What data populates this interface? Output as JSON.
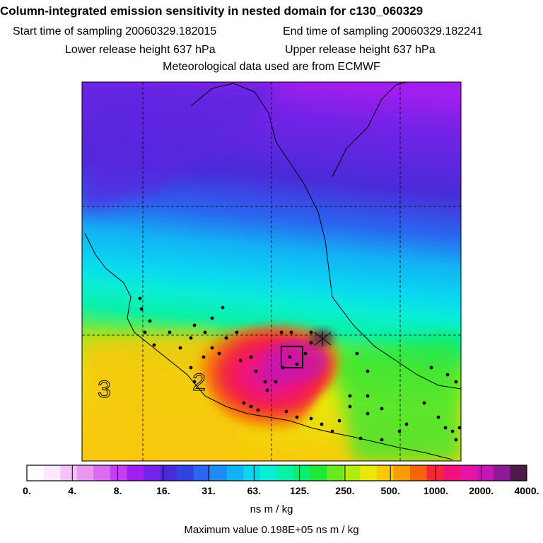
{
  "header": {
    "title": "Column-integrated emission sensitivity in nested domain for c130_060329",
    "start_time": "Start time of sampling 20060329.182015",
    "end_time": "End time of sampling 20060329.182241",
    "lower_height": "Lower release height  637 hPa",
    "upper_height": "Upper release height  637 hPa",
    "met_data": "Meteorological data used are from ECMWF"
  },
  "map": {
    "label_3": "3",
    "label_2": "2"
  },
  "colorbar": {
    "colors": [
      "#ffffff",
      "#fde9fd",
      "#f6c2f6",
      "#ea97f0",
      "#d96cf0",
      "#c43df0",
      "#a01eee",
      "#7622e8",
      "#4a2bd8",
      "#2f43df",
      "#2a66ef",
      "#1e8cf4",
      "#12b2f4",
      "#0ad6f2",
      "#0aeed6",
      "#0af0a6",
      "#0aee72",
      "#22e63a",
      "#6aea1e",
      "#b2ec14",
      "#e8e80a",
      "#f8c80a",
      "#f89c0a",
      "#f8640a",
      "#f42838",
      "#f0127a",
      "#e414a8",
      "#c416b4",
      "#8e1a98",
      "#4e1a48"
    ],
    "tick_labels": [
      "0.",
      "4.",
      "8.",
      "16.",
      "31.",
      "63.",
      "125.",
      "250.",
      "500.",
      "1000.",
      "2000.",
      "4000."
    ],
    "units": "ns m / kg"
  },
  "chart_data": {
    "type": "heatmap",
    "title": "Column-integrated emission sensitivity in nested domain for c130_060329",
    "quantity": "emission sensitivity",
    "units": "ns m / kg",
    "color_scale_levels": [
      0,
      4,
      8,
      16,
      31,
      63,
      125,
      250,
      500,
      1000,
      2000,
      4000
    ],
    "maximum_value": "0.198E+05",
    "max_text": "Maximum value  0.198E+05 ns m / kg",
    "release_height_hPa": [
      637,
      637
    ],
    "sampling_start": "20060329.182015",
    "sampling_end": "20060329.182241",
    "meteorology": "ECMWF"
  }
}
